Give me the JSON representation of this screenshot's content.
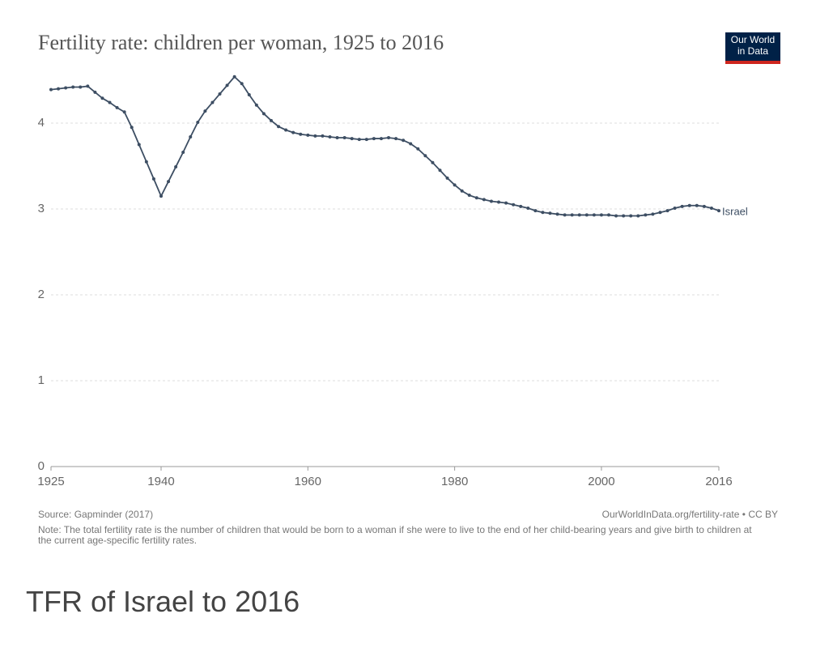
{
  "chart_data": {
    "type": "line",
    "title": "Fertility rate: children per woman, 1925 to 2016",
    "logo": [
      "Our World",
      "in Data"
    ],
    "source": "Source: Gapminder (2017)",
    "url": "OurWorldInData.org/fertility-rate • CC BY",
    "note": "Note: The total fertility rate is the number of children that would be born to a woman if she were to live to the end of her child-bearing years and give birth to children at the current age-specific fertility rates.",
    "x": [
      1925,
      1926,
      1927,
      1928,
      1929,
      1930,
      1931,
      1932,
      1933,
      1934,
      1935,
      1936,
      1937,
      1938,
      1939,
      1940,
      1941,
      1942,
      1943,
      1944,
      1945,
      1946,
      1947,
      1948,
      1949,
      1950,
      1951,
      1952,
      1953,
      1954,
      1955,
      1956,
      1957,
      1958,
      1959,
      1960,
      1961,
      1962,
      1963,
      1964,
      1965,
      1966,
      1967,
      1968,
      1969,
      1970,
      1971,
      1972,
      1973,
      1974,
      1975,
      1976,
      1977,
      1978,
      1979,
      1980,
      1981,
      1982,
      1983,
      1984,
      1985,
      1986,
      1987,
      1988,
      1989,
      1990,
      1991,
      1992,
      1993,
      1994,
      1995,
      1996,
      1997,
      1998,
      1999,
      2000,
      2001,
      2002,
      2003,
      2004,
      2005,
      2006,
      2007,
      2008,
      2009,
      2010,
      2011,
      2012,
      2013,
      2014,
      2015,
      2016
    ],
    "series": [
      {
        "name": "Israel",
        "color": "#3d4e63",
        "values": [
          4.39,
          4.4,
          4.41,
          4.42,
          4.42,
          4.43,
          4.36,
          4.29,
          4.24,
          4.18,
          4.13,
          3.95,
          3.75,
          3.55,
          3.35,
          3.15,
          3.32,
          3.49,
          3.66,
          3.84,
          4.01,
          4.14,
          4.24,
          4.34,
          4.44,
          4.54,
          4.46,
          4.33,
          4.21,
          4.11,
          4.03,
          3.96,
          3.92,
          3.89,
          3.87,
          3.86,
          3.85,
          3.85,
          3.84,
          3.83,
          3.83,
          3.82,
          3.81,
          3.81,
          3.82,
          3.82,
          3.83,
          3.82,
          3.8,
          3.76,
          3.7,
          3.62,
          3.54,
          3.45,
          3.36,
          3.28,
          3.21,
          3.16,
          3.13,
          3.11,
          3.09,
          3.08,
          3.07,
          3.05,
          3.03,
          3.01,
          2.98,
          2.96,
          2.95,
          2.94,
          2.93,
          2.93,
          2.93,
          2.93,
          2.93,
          2.93,
          2.93,
          2.92,
          2.92,
          2.92,
          2.92,
          2.93,
          2.94,
          2.96,
          2.98,
          3.01,
          3.03,
          3.04,
          3.04,
          3.03,
          3.01,
          2.98
        ]
      }
    ],
    "xlim": [
      1925,
      2016
    ],
    "xticks": [
      1925,
      1940,
      1960,
      1980,
      2000,
      2016
    ],
    "ylim": [
      0,
      4.6
    ],
    "yticks": [
      0,
      1,
      2,
      3,
      4
    ],
    "grid": true
  },
  "caption": "TFR of Israel to 2016"
}
